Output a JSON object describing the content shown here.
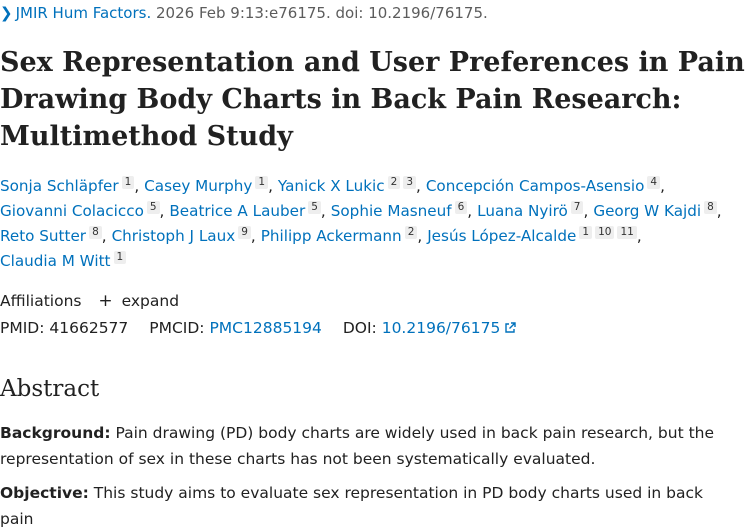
{
  "citation": {
    "journal": "JMIR Hum Factors.",
    "details": "2026 Feb 9:13:e76175. doi: 10.2196/76175."
  },
  "title": {
    "line1": "Sex Representation and User Preferences in Pain",
    "line2": "Drawing Body Charts in Back Pain Research:",
    "line3": "Multimethod Study"
  },
  "authors": [
    {
      "name": "Sonja Schläpfer",
      "affs": [
        "1"
      ]
    },
    {
      "name": "Casey Murphy",
      "affs": [
        "1"
      ]
    },
    {
      "name": "Yanick X Lukic",
      "affs": [
        "2",
        "3"
      ]
    },
    {
      "name": "Concepción Campos-Asensio",
      "affs": [
        "4"
      ]
    },
    {
      "name": "Giovanni Colacicco",
      "affs": [
        "5"
      ]
    },
    {
      "name": "Beatrice A Lauber",
      "affs": [
        "5"
      ]
    },
    {
      "name": "Sophie Masneuf",
      "affs": [
        "6"
      ]
    },
    {
      "name": "Luana Nyirö",
      "affs": [
        "7"
      ]
    },
    {
      "name": "Georg W Kajdi",
      "affs": [
        "8"
      ]
    },
    {
      "name": "Reto Sutter",
      "affs": [
        "8"
      ]
    },
    {
      "name": "Christoph J Laux",
      "affs": [
        "9"
      ]
    },
    {
      "name": "Philipp Ackermann",
      "affs": [
        "2"
      ]
    },
    {
      "name": "Jesús López-Alcalde",
      "affs": [
        "1",
        "10",
        "11"
      ]
    },
    {
      "name": "Claudia M Witt",
      "affs": [
        "1"
      ]
    }
  ],
  "affiliations": {
    "label": "Affiliations",
    "toggle_symbol": "+",
    "toggle_label": "expand"
  },
  "ids": {
    "pmid_label": "PMID:",
    "pmid": "41662577",
    "pmcid_label": "PMCID:",
    "pmcid": "PMC12885194",
    "doi_label": "DOI:",
    "doi": "10.2196/76175"
  },
  "abstract": {
    "heading": "Abstract",
    "background_label": "Background:",
    "background_line1": "Pain drawing (PD) body charts are widely used in back pain research, but the",
    "background_line2": "representation of sex in these charts has not been systematically evaluated.",
    "objective_label": "Objective:",
    "objective_text": "This study aims to evaluate sex representation in PD body charts used in back pain"
  },
  "colors": {
    "link": "#0071bc",
    "text": "#212121",
    "muted": "#5c5c5c"
  }
}
